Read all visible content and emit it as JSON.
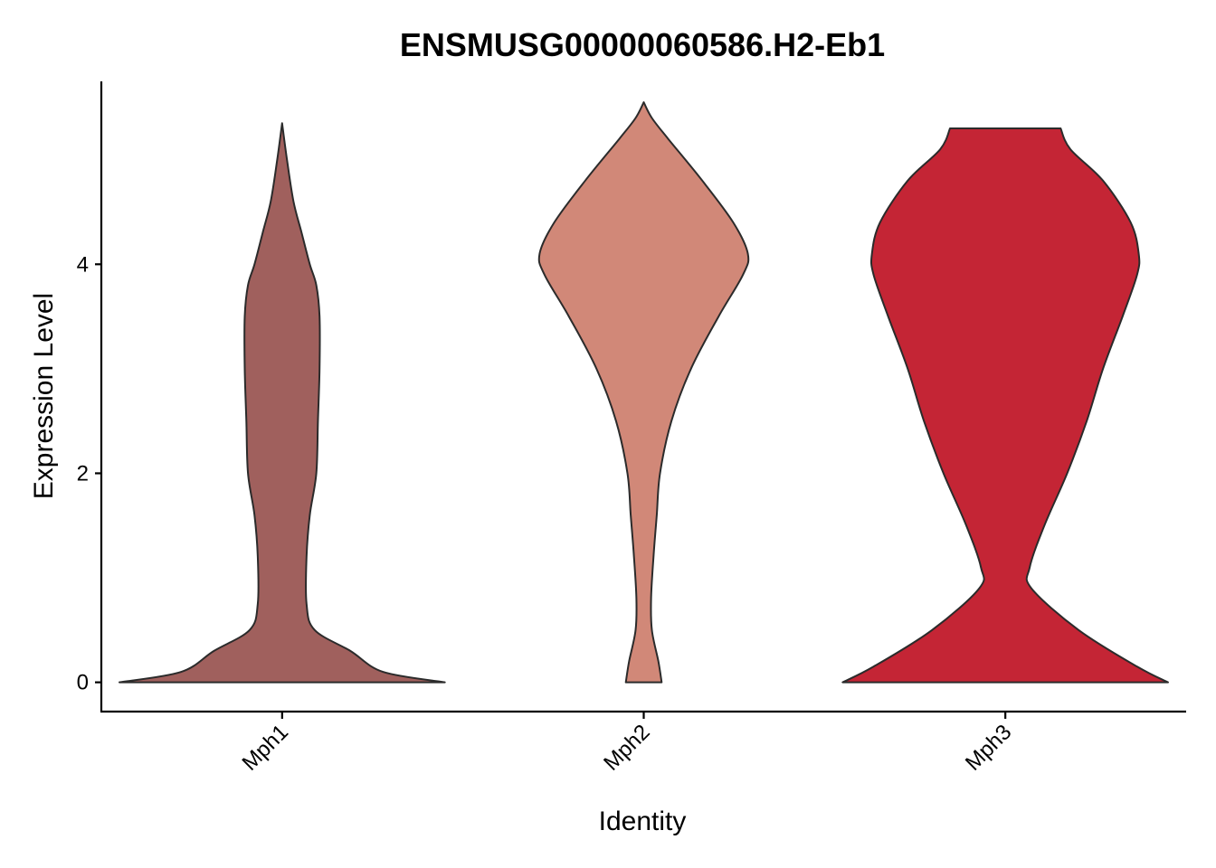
{
  "chart_data": {
    "type": "violin",
    "title": "ENSMUSG00000060586.H2-Eb1",
    "xlabel": "Identity",
    "ylabel": "Expression Level",
    "ylim": [
      -0.28,
      5.75
    ],
    "yticks": [
      0,
      2,
      4
    ],
    "grid": false,
    "legend": "none",
    "categories": [
      "Mph1",
      "Mph2",
      "Mph3"
    ],
    "series": [
      {
        "category": "Mph1",
        "color": "#a0605d",
        "max_half_width": 0.57,
        "y_range": [
          0,
          5.35
        ],
        "profile": [
          [
            0,
            1.0
          ],
          [
            0.1,
            0.62
          ],
          [
            0.3,
            0.42
          ],
          [
            0.5,
            0.2
          ],
          [
            0.75,
            0.15
          ],
          [
            1.2,
            0.15
          ],
          [
            1.6,
            0.17
          ],
          [
            2.0,
            0.21
          ],
          [
            2.5,
            0.22
          ],
          [
            3.0,
            0.23
          ],
          [
            3.5,
            0.23
          ],
          [
            3.8,
            0.21
          ],
          [
            4.0,
            0.17
          ],
          [
            4.3,
            0.12
          ],
          [
            4.6,
            0.07
          ],
          [
            5.0,
            0.03
          ],
          [
            5.35,
            0.0
          ]
        ]
      },
      {
        "category": "Mph2",
        "color": "#d18878",
        "max_half_width": 0.57,
        "y_range": [
          0,
          5.55
        ],
        "profile": [
          [
            0,
            0.11
          ],
          [
            0.2,
            0.09
          ],
          [
            0.5,
            0.05
          ],
          [
            0.8,
            0.045
          ],
          [
            1.2,
            0.06
          ],
          [
            1.6,
            0.08
          ],
          [
            2.0,
            0.1
          ],
          [
            2.5,
            0.17
          ],
          [
            3.0,
            0.29
          ],
          [
            3.5,
            0.46
          ],
          [
            3.9,
            0.61
          ],
          [
            4.1,
            0.64
          ],
          [
            4.4,
            0.55
          ],
          [
            4.8,
            0.36
          ],
          [
            5.2,
            0.15
          ],
          [
            5.4,
            0.05
          ],
          [
            5.55,
            0.0
          ]
        ]
      },
      {
        "category": "Mph3",
        "color": "#c42535",
        "max_half_width": 0.57,
        "y_range": [
          0,
          5.3
        ],
        "profile": [
          [
            0,
            1.0
          ],
          [
            0.15,
            0.81
          ],
          [
            0.5,
            0.45
          ],
          [
            0.9,
            0.16
          ],
          [
            1.1,
            0.15
          ],
          [
            1.5,
            0.24
          ],
          [
            2.0,
            0.38
          ],
          [
            2.5,
            0.5
          ],
          [
            3.0,
            0.6
          ],
          [
            3.5,
            0.72
          ],
          [
            3.9,
            0.81
          ],
          [
            4.1,
            0.82
          ],
          [
            4.4,
            0.77
          ],
          [
            4.8,
            0.6
          ],
          [
            5.1,
            0.4
          ],
          [
            5.3,
            0.34
          ]
        ]
      }
    ]
  }
}
